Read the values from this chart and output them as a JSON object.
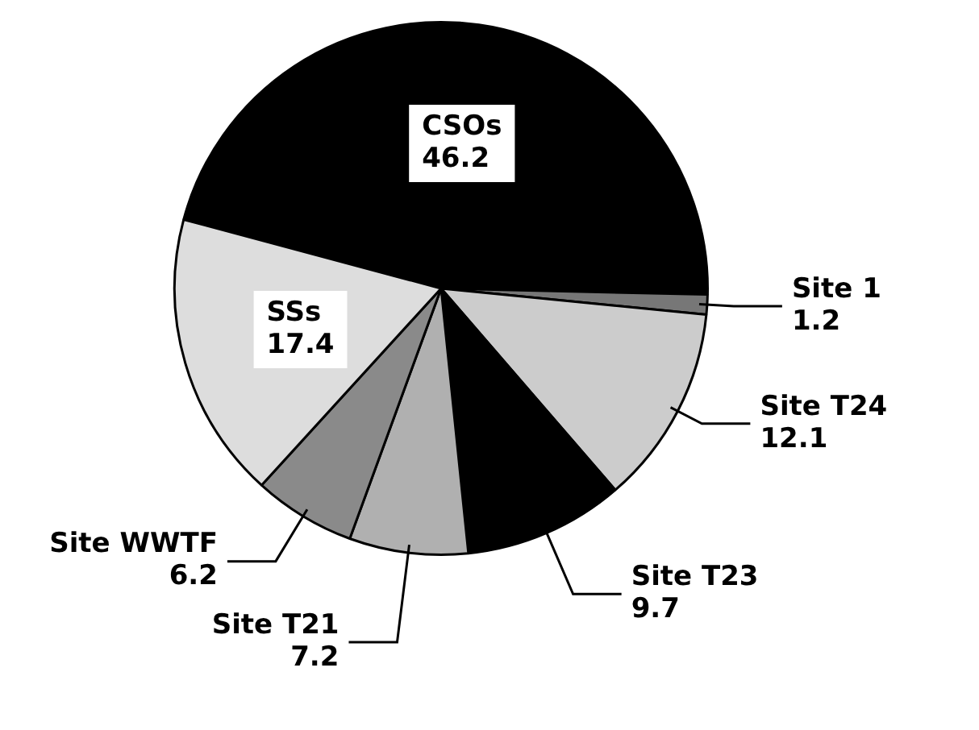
{
  "chart_data": {
    "type": "pie",
    "categories": [
      "CSOs",
      "Site 1",
      "Site T24",
      "Site T23",
      "Site T21",
      "Site WWTF",
      "SSs"
    ],
    "values": [
      46.2,
      1.2,
      12.1,
      9.7,
      7.2,
      6.2,
      17.4
    ],
    "colors": [
      "#000000",
      "#777777",
      "#cccccc",
      "#000000",
      "#b0b0b0",
      "#8a8a8a",
      "#dddddd"
    ],
    "data_labels": true
  }
}
